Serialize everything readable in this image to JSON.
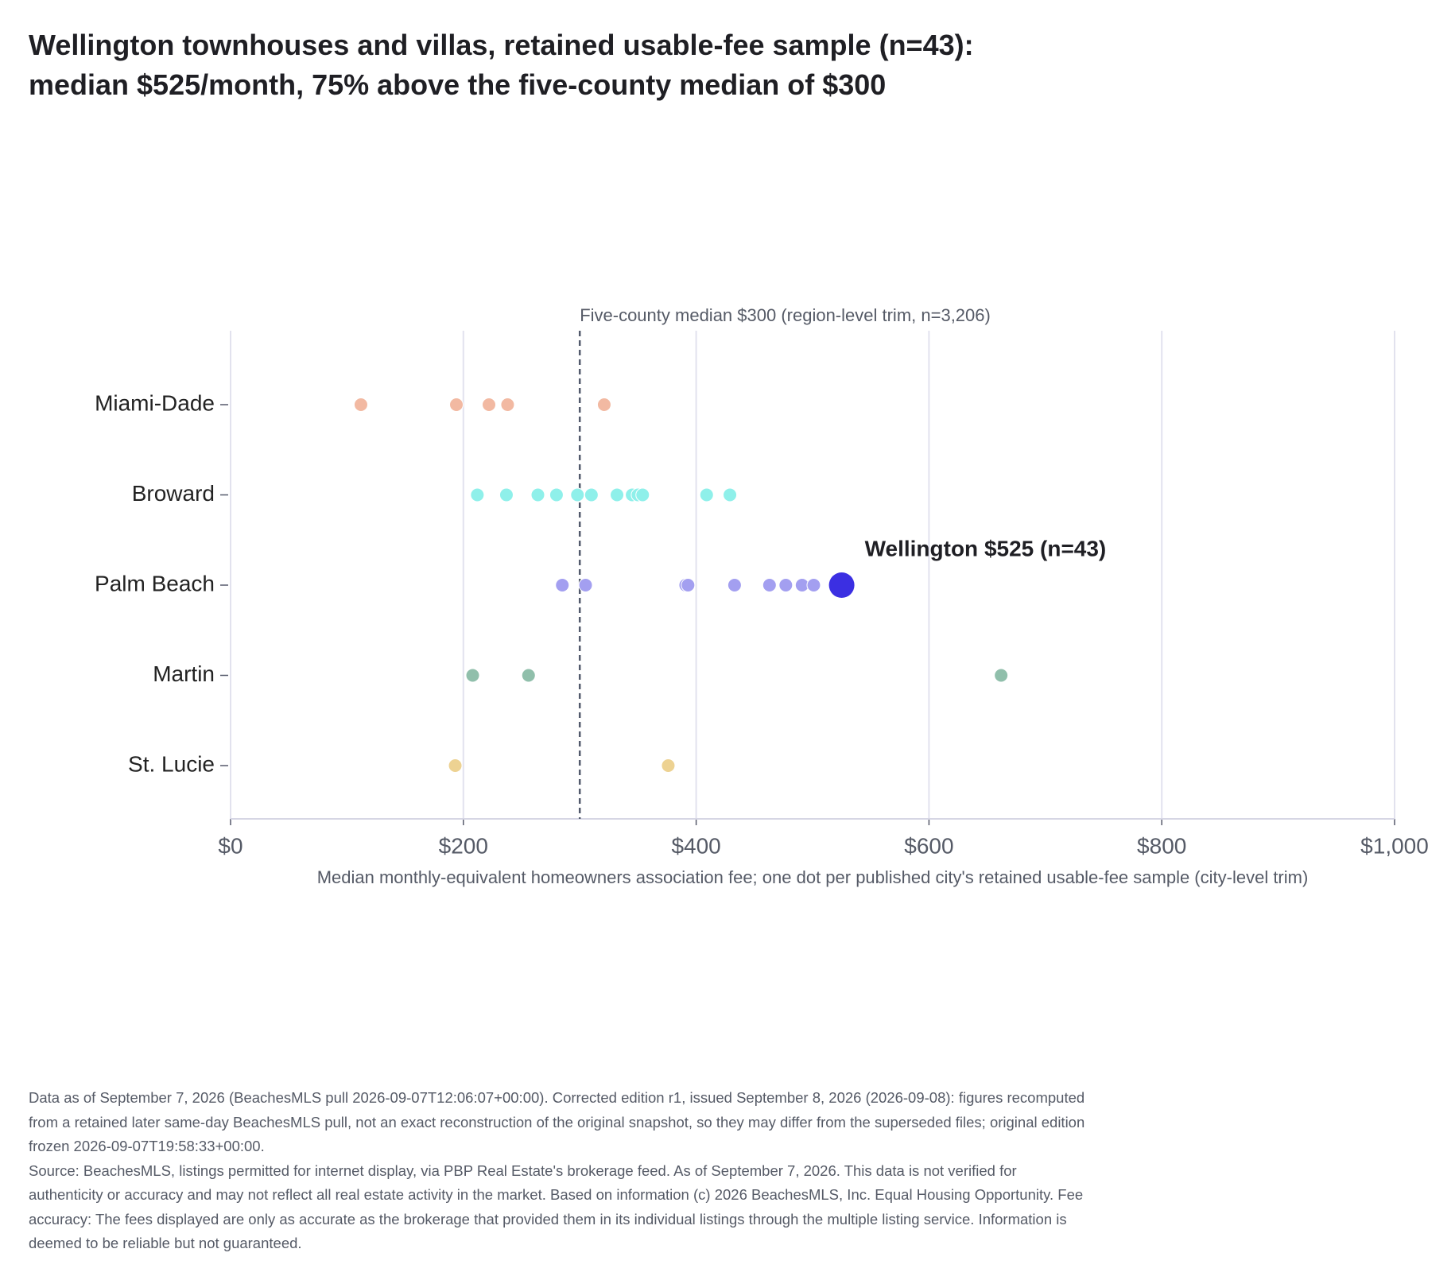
{
  "chart_data": {
    "type": "strip",
    "title": "Wellington townhouses and villas, retained usable-fee sample (n=43): median $525/month, 75% above the five-county median of $300",
    "x_label": "Median monthly-equivalent homeowners association fee; one dot per published city's retained usable-fee sample (city-level trim)",
    "xlim": [
      0,
      1000
    ],
    "xticks": [
      {
        "value": 0,
        "label": "$0"
      },
      {
        "value": 200,
        "label": "$200"
      },
      {
        "value": 400,
        "label": "$400"
      },
      {
        "value": 600,
        "label": "$600"
      },
      {
        "value": 800,
        "label": "$800"
      },
      {
        "value": 1000,
        "label": "$1,000"
      }
    ],
    "grid": true,
    "reference_line": {
      "value": 300,
      "label": "Five-county median $300 (region-level trim, n=3,206)"
    },
    "series": [
      {
        "name": "Miami-Dade",
        "color": "#f2b9a2",
        "values": [
          112,
          194,
          222,
          238,
          321
        ]
      },
      {
        "name": "Broward",
        "color": "#8ff0ea",
        "values": [
          212,
          237,
          264,
          280,
          298,
          310,
          332,
          345,
          350,
          354,
          409,
          429
        ]
      },
      {
        "name": "Palm Beach",
        "color": "#a39ff0",
        "values": [
          285,
          305,
          391,
          393,
          433,
          463,
          477,
          491,
          501
        ],
        "highlight": {
          "value": 525,
          "label": "Wellington $525 (n=43)",
          "color": "#3b2fe2"
        }
      },
      {
        "name": "Martin",
        "color": "#90bfab",
        "values": [
          208,
          256,
          662
        ]
      },
      {
        "name": "St. Lucie",
        "color": "#edd292",
        "values": [
          193,
          376
        ]
      }
    ],
    "notes": [
      "Data as of September 7, 2026 (BeachesMLS pull 2026-09-07T12:06:07+00:00). Corrected edition r1, issued September 8, 2026 (2026-09-08): figures recomputed from a retained later same-day BeachesMLS pull, not an exact reconstruction of the original snapshot, so they may differ from the superseded files; original edition frozen 2026-09-07T19:58:33+00:00.",
      "Source: BeachesMLS, listings permitted for internet display, via PBP Real Estate's brokerage feed. As of September 7, 2026. This data is not verified for authenticity or accuracy and may not reflect all real estate activity in the market. Based on information (c) 2026 BeachesMLS, Inc. Equal Housing Opportunity. Fee accuracy: The fees displayed are only as accurate as the brokerage that provided them in its individual listings through the multiple listing service. Information is deemed to be reliable but not guaranteed."
    ]
  }
}
